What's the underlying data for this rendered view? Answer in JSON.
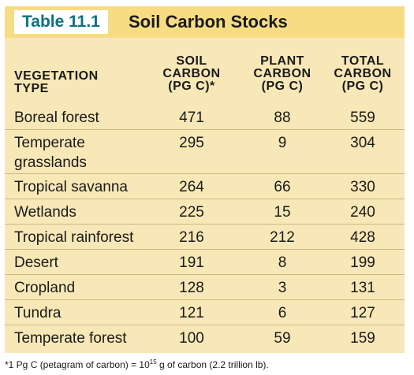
{
  "table": {
    "label": "Table 11.1",
    "title": "Soil Carbon Stocks"
  },
  "columns": {
    "type": [
      "VEGETATION",
      "TYPE"
    ],
    "soil": [
      "SOIL",
      "CARBON",
      "(PG C)*"
    ],
    "plant": [
      "PLANT",
      "CARBON",
      "(PG C)"
    ],
    "total": [
      "TOTAL",
      "CARBON",
      "(PG C)"
    ]
  },
  "rows": [
    {
      "name": "Boreal forest",
      "soil": "471",
      "plant": "88",
      "total": "559"
    },
    {
      "name": "Temperate\ngrasslands",
      "soil": "295",
      "plant": "9",
      "total": "304"
    },
    {
      "name": "Tropical savanna",
      "soil": "264",
      "plant": "66",
      "total": "330"
    },
    {
      "name": "Wetlands",
      "soil": "225",
      "plant": "15",
      "total": "240"
    },
    {
      "name": "Tropical rainforest",
      "soil": "216",
      "plant": "212",
      "total": "428"
    },
    {
      "name": "Desert",
      "soil": "191",
      "plant": "8",
      "total": "199"
    },
    {
      "name": "Cropland",
      "soil": "128",
      "plant": "3",
      "total": "131"
    },
    {
      "name": "Tundra",
      "soil": "121",
      "plant": "6",
      "total": "127"
    },
    {
      "name": "Temperate forest",
      "soil": "100",
      "plant": "59",
      "total": "159"
    }
  ],
  "footnote": {
    "before": "*1 Pg C (petagram of carbon) = 10",
    "exp": "15",
    "after": " g of carbon (2.2 trillion lb)."
  },
  "colors": {
    "label_text": "#0b7283",
    "title_bar": "#f7dc83",
    "panel": "#f8e8b7"
  }
}
